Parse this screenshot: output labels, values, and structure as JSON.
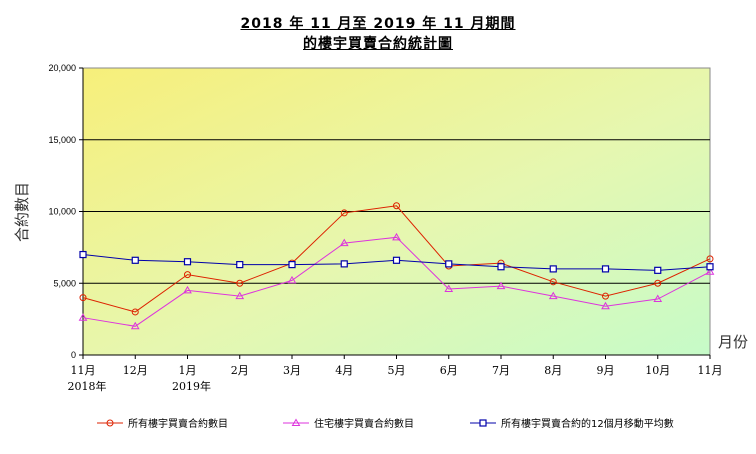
{
  "chart_data": {
    "type": "line",
    "title": "2018 年 11 月至 2019 年 11 月期間",
    "subtitle": "的樓宇買賣合約統計圖",
    "ylabel": "合約數目",
    "xlabel": "月份",
    "ylim": [
      0,
      20000
    ],
    "yticks": [
      0,
      5000,
      10000,
      15000,
      20000
    ],
    "ytick_labels": [
      "0",
      "5,000",
      "10,000",
      "15,000",
      "20,000"
    ],
    "categories": [
      "11月",
      "12月",
      "1月",
      "2月",
      "3月",
      "4月",
      "5月",
      "6月",
      "7月",
      "8月",
      "9月",
      "10月",
      "11月"
    ],
    "year_labels": [
      "2018年",
      "",
      "2019年",
      "",
      "",
      "",
      "",
      "",
      "",
      "",
      "",
      "",
      ""
    ],
    "grid": true,
    "legend_position": "bottom",
    "series": [
      {
        "name": "所有樓宇買賣合約數目",
        "color": "#dd2200",
        "marker": "circle",
        "values": [
          4000,
          3000,
          5600,
          5000,
          6400,
          9900,
          10400,
          6200,
          6400,
          5100,
          4100,
          5000,
          6700
        ]
      },
      {
        "name": "住宅樓宇買賣合約數目",
        "color": "#dd33dd",
        "marker": "triangle",
        "values": [
          2600,
          2000,
          4500,
          4100,
          5200,
          7800,
          8200,
          4600,
          4800,
          4100,
          3400,
          3900,
          5800
        ]
      },
      {
        "name": "所有樓宇買賣合約的12個月移動平均數",
        "color": "#0000aa",
        "marker": "square",
        "values": [
          7000,
          6600,
          6500,
          6300,
          6300,
          6350,
          6600,
          6350,
          6150,
          6000,
          6000,
          5900,
          6150
        ]
      }
    ]
  }
}
